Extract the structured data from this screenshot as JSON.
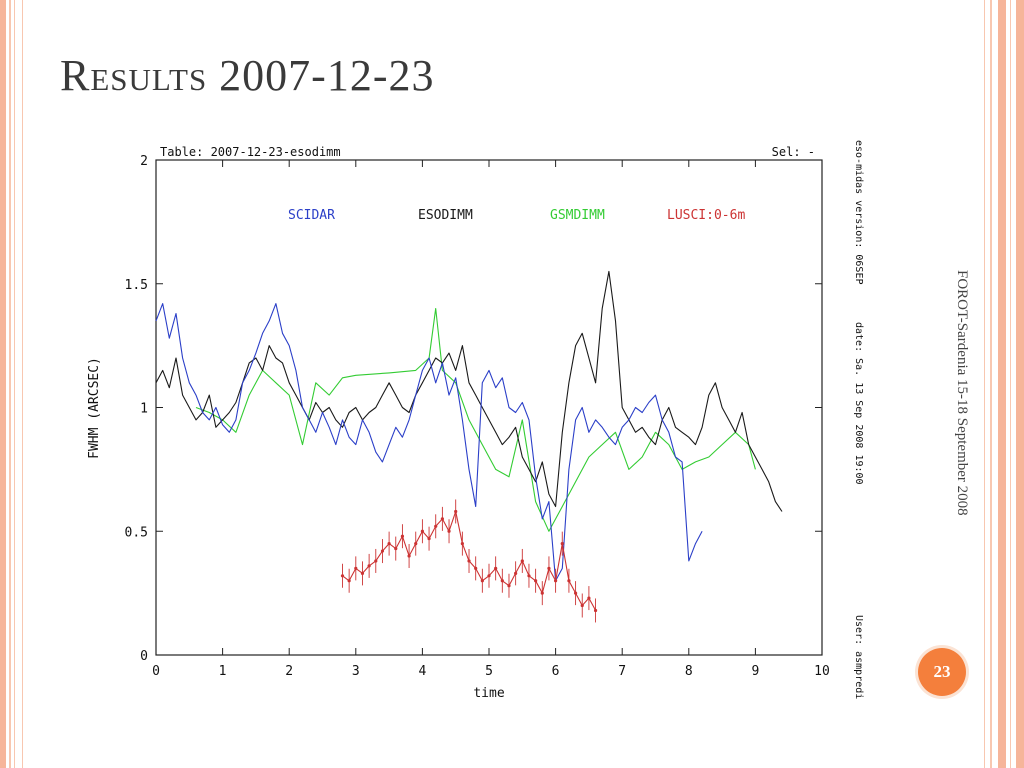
{
  "slide": {
    "title": "Results 2007-12-23",
    "side_caption": "FOROT-Sardenia 15-18 September 2008",
    "page_number": "23",
    "accent_color": "#f47f3c",
    "frame_color": "#f6b59a"
  },
  "chart_data": {
    "type": "line",
    "table_label": "Table: 2007-12-23-esodimm",
    "sel_label": "Sel: -",
    "xlabel": "time",
    "ylabel": "FWHM (ARCSEC)",
    "xlim": [
      0,
      10
    ],
    "ylim": [
      0,
      2
    ],
    "x_ticks": [
      "0",
      "1",
      "2",
      "3",
      "4",
      "5",
      "6",
      "7",
      "8",
      "9",
      "10"
    ],
    "y_ticks": [
      "0",
      "0.5",
      "1",
      "1.5",
      "2"
    ],
    "grid": false,
    "legend_placement": "top",
    "footer": {
      "version": "eso-midas version: 06SEP",
      "date": "date: Sa. 13 Sep 2008 19:00",
      "user": "User: asmpredi"
    },
    "series": [
      {
        "name": "SCIDAR",
        "color": "#2b3fc8",
        "x": [
          0.0,
          0.1,
          0.2,
          0.3,
          0.4,
          0.5,
          0.6,
          0.7,
          0.8,
          0.9,
          1.0,
          1.1,
          1.2,
          1.3,
          1.4,
          1.5,
          1.6,
          1.7,
          1.8,
          1.9,
          2.0,
          2.1,
          2.2,
          2.3,
          2.4,
          2.5,
          2.6,
          2.7,
          2.8,
          2.9,
          3.0,
          3.1,
          3.2,
          3.3,
          3.4,
          3.5,
          3.6,
          3.7,
          3.8,
          3.9,
          4.0,
          4.1,
          4.2,
          4.3,
          4.4,
          4.5,
          4.6,
          4.7,
          4.8,
          4.9,
          5.0,
          5.1,
          5.2,
          5.3,
          5.4,
          5.5,
          5.6,
          5.7,
          5.8,
          5.9,
          6.0,
          6.1,
          6.2,
          6.3,
          6.4,
          6.5,
          6.6,
          6.7,
          6.8,
          6.9,
          7.0,
          7.1,
          7.2,
          7.3,
          7.4,
          7.5,
          7.6,
          7.7,
          7.8,
          7.9,
          8.0,
          8.1,
          8.2
        ],
        "y": [
          1.35,
          1.42,
          1.28,
          1.38,
          1.2,
          1.1,
          1.05,
          0.98,
          0.95,
          1.0,
          0.93,
          0.9,
          0.95,
          1.1,
          1.15,
          1.22,
          1.3,
          1.35,
          1.42,
          1.3,
          1.25,
          1.15,
          1.0,
          0.95,
          0.9,
          0.98,
          0.92,
          0.85,
          0.95,
          0.88,
          0.85,
          0.95,
          0.9,
          0.82,
          0.78,
          0.85,
          0.92,
          0.88,
          0.95,
          1.05,
          1.15,
          1.2,
          1.1,
          1.18,
          1.05,
          1.12,
          0.95,
          0.75,
          0.6,
          1.1,
          1.15,
          1.08,
          1.12,
          1.0,
          0.98,
          1.02,
          0.95,
          0.72,
          0.55,
          0.62,
          0.3,
          0.35,
          0.75,
          0.95,
          1.0,
          0.9,
          0.95,
          0.92,
          0.88,
          0.85,
          0.92,
          0.95,
          1.0,
          0.98,
          1.02,
          1.05,
          0.95,
          0.9,
          0.8,
          0.78,
          0.38,
          0.45,
          0.5
        ]
      },
      {
        "name": "ESODIMM",
        "color": "#1a1a1a",
        "x": [
          0.0,
          0.1,
          0.2,
          0.3,
          0.4,
          0.5,
          0.6,
          0.7,
          0.8,
          0.9,
          1.0,
          1.1,
          1.2,
          1.3,
          1.4,
          1.5,
          1.6,
          1.7,
          1.8,
          1.9,
          2.0,
          2.1,
          2.2,
          2.3,
          2.4,
          2.5,
          2.6,
          2.7,
          2.8,
          2.9,
          3.0,
          3.1,
          3.2,
          3.3,
          3.4,
          3.5,
          3.6,
          3.7,
          3.8,
          3.9,
          4.0,
          4.1,
          4.2,
          4.3,
          4.4,
          4.5,
          4.6,
          4.7,
          4.8,
          4.9,
          5.0,
          5.1,
          5.2,
          5.3,
          5.4,
          5.5,
          5.6,
          5.7,
          5.8,
          5.9,
          6.0,
          6.1,
          6.2,
          6.3,
          6.4,
          6.5,
          6.6,
          6.7,
          6.8,
          6.9,
          7.0,
          7.1,
          7.2,
          7.3,
          7.4,
          7.5,
          7.6,
          7.7,
          7.8,
          7.9,
          8.0,
          8.1,
          8.2,
          8.3,
          8.4,
          8.5,
          8.6,
          8.7,
          8.8,
          8.9,
          9.0,
          9.1,
          9.2,
          9.3,
          9.4
        ],
        "y": [
          1.1,
          1.15,
          1.08,
          1.2,
          1.05,
          1.0,
          0.95,
          0.98,
          1.05,
          0.92,
          0.95,
          0.98,
          1.02,
          1.1,
          1.18,
          1.2,
          1.15,
          1.25,
          1.2,
          1.18,
          1.1,
          1.05,
          1.0,
          0.95,
          1.02,
          0.98,
          1.0,
          0.95,
          0.92,
          0.98,
          1.0,
          0.95,
          0.98,
          1.0,
          1.05,
          1.1,
          1.05,
          1.0,
          0.98,
          1.05,
          1.1,
          1.15,
          1.2,
          1.18,
          1.22,
          1.15,
          1.25,
          1.1,
          1.05,
          1.0,
          0.95,
          0.9,
          0.85,
          0.88,
          0.92,
          0.8,
          0.75,
          0.7,
          0.78,
          0.65,
          0.6,
          0.9,
          1.1,
          1.25,
          1.3,
          1.2,
          1.1,
          1.4,
          1.55,
          1.35,
          1.0,
          0.95,
          0.9,
          0.92,
          0.88,
          0.85,
          0.95,
          1.0,
          0.92,
          0.9,
          0.88,
          0.85,
          0.92,
          1.05,
          1.1,
          1.0,
          0.95,
          0.9,
          0.98,
          0.85,
          0.8,
          0.75,
          0.7,
          0.62,
          0.58
        ]
      },
      {
        "name": "GSMDIMM",
        "color": "#33cc33",
        "x": [
          0.6,
          0.8,
          1.0,
          1.2,
          1.4,
          1.6,
          1.8,
          2.0,
          2.2,
          2.4,
          2.6,
          2.8,
          3.0,
          3.5,
          3.9,
          4.1,
          4.2,
          4.3,
          4.5,
          4.7,
          4.9,
          5.1,
          5.3,
          5.5,
          5.7,
          5.9,
          6.0,
          6.1,
          6.3,
          6.5,
          6.7,
          6.9,
          7.1,
          7.3,
          7.5,
          7.7,
          7.9,
          8.1,
          8.3,
          8.5,
          8.7,
          8.9,
          9.0
        ],
        "y": [
          1.0,
          0.98,
          0.95,
          0.9,
          1.05,
          1.15,
          1.1,
          1.05,
          0.85,
          1.1,
          1.05,
          1.12,
          1.13,
          1.14,
          1.15,
          1.2,
          1.4,
          1.15,
          1.1,
          0.95,
          0.85,
          0.75,
          0.72,
          0.95,
          0.62,
          0.5,
          0.55,
          0.6,
          0.7,
          0.8,
          0.85,
          0.9,
          0.75,
          0.8,
          0.9,
          0.85,
          0.75,
          0.78,
          0.8,
          0.85,
          0.9,
          0.85,
          0.75
        ]
      },
      {
        "name": "LUSCI:0-6m",
        "color": "#cc3333",
        "x": [
          2.8,
          2.9,
          3.0,
          3.1,
          3.2,
          3.3,
          3.4,
          3.5,
          3.6,
          3.7,
          3.8,
          3.9,
          4.0,
          4.1,
          4.2,
          4.3,
          4.4,
          4.5,
          4.6,
          4.7,
          4.8,
          4.9,
          5.0,
          5.1,
          5.2,
          5.3,
          5.4,
          5.5,
          5.6,
          5.7,
          5.8,
          5.9,
          6.0,
          6.1,
          6.2,
          6.3,
          6.4,
          6.5,
          6.6
        ],
        "y": [
          0.32,
          0.3,
          0.35,
          0.33,
          0.36,
          0.38,
          0.42,
          0.45,
          0.43,
          0.48,
          0.4,
          0.45,
          0.5,
          0.47,
          0.52,
          0.55,
          0.5,
          0.58,
          0.45,
          0.38,
          0.35,
          0.3,
          0.32,
          0.35,
          0.3,
          0.28,
          0.33,
          0.38,
          0.32,
          0.3,
          0.25,
          0.35,
          0.3,
          0.45,
          0.3,
          0.25,
          0.2,
          0.23,
          0.18
        ]
      }
    ]
  }
}
